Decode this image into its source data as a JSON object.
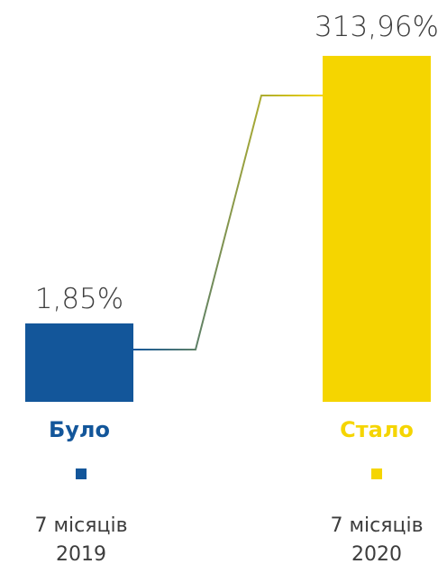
{
  "chart_data": {
    "type": "bar",
    "categories": [
      "Було",
      "Стало"
    ],
    "values": [
      1.85,
      313.96
    ],
    "value_labels": [
      "1,85%",
      "313,96%"
    ],
    "periods": [
      {
        "line1": "7 місяців",
        "line2": "2019"
      },
      {
        "line1": "7 місяців",
        "line2": "2020"
      }
    ],
    "colors": [
      "#13569a",
      "#f5d500"
    ],
    "text_color": "#3d3d3d",
    "legend": "none",
    "grid": false
  }
}
